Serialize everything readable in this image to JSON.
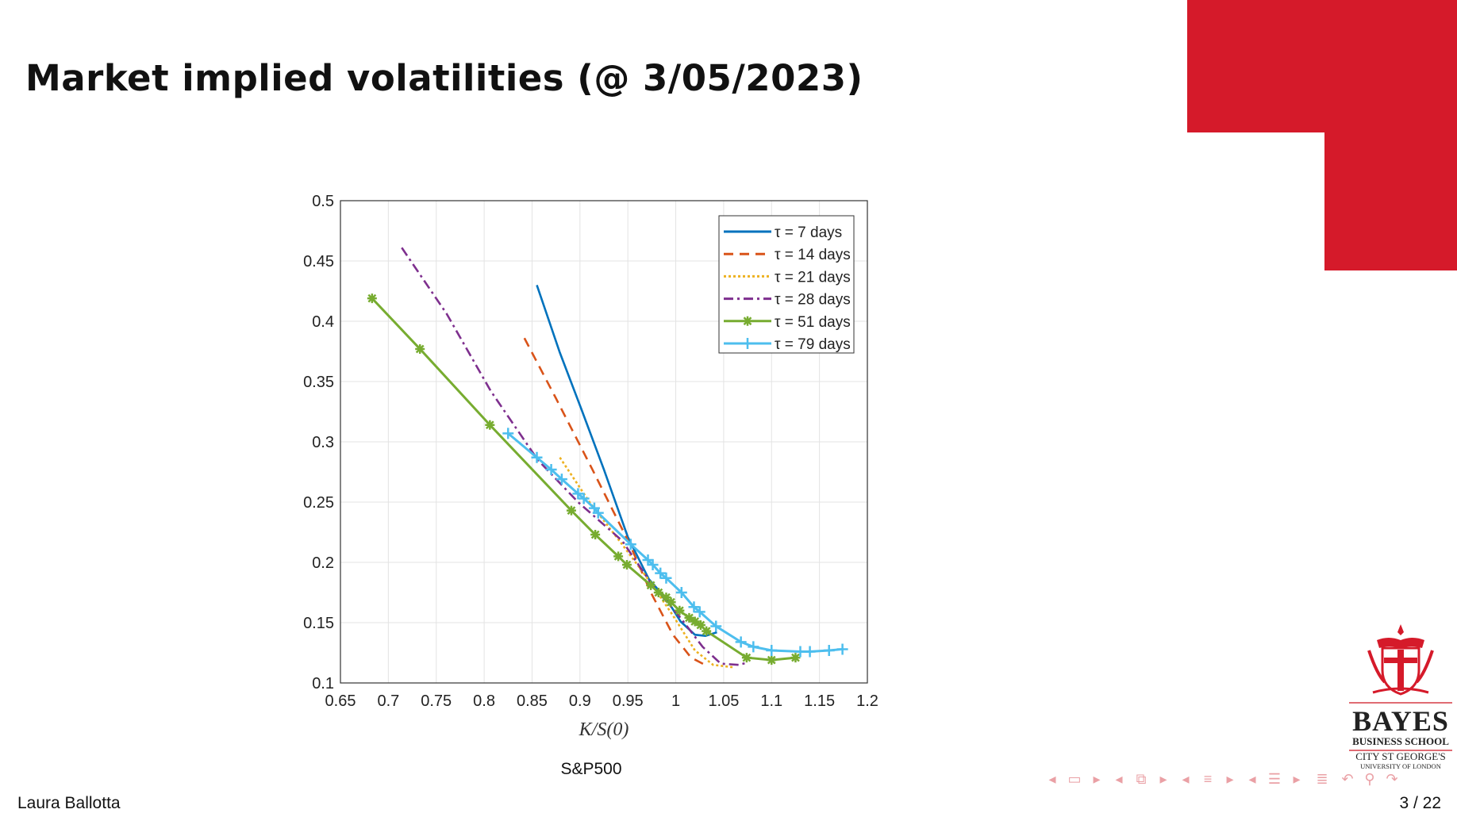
{
  "slide": {
    "title": "Market implied volatilities (@ 3/05/2023)",
    "caption": "S&P500",
    "author": "Laura Ballotta",
    "page": "3 / 22",
    "accent_color": "#d51a2a"
  },
  "logo": {
    "name": "BAYES",
    "subtitle": "BUSINESS SCHOOL",
    "affiliation": "CITY ST GEORGE'S",
    "university": "UNIVERSITY OF LONDON"
  },
  "nav": {
    "icons": [
      "prev-arrow",
      "frame-icon",
      "next-arrow",
      "prev-arrow",
      "subsection-icon",
      "next-arrow",
      "prev-arrow",
      "section-icon",
      "next-arrow",
      "prev-arrow",
      "toc-icon",
      "next-arrow",
      "outline-icon",
      "undo-icon",
      "search-icon",
      "redo-icon"
    ]
  },
  "chart_data": {
    "type": "line",
    "title": "",
    "xlabel": "K/S(0)",
    "ylabel": "",
    "xlim": [
      0.65,
      1.2
    ],
    "ylim": [
      0.1,
      0.5
    ],
    "xticks": [
      "0.65",
      "0.7",
      "0.75",
      "0.8",
      "0.85",
      "0.9",
      "0.95",
      "1",
      "1.05",
      "1.1",
      "1.15",
      "1.2"
    ],
    "yticks": [
      "0.1",
      "0.15",
      "0.2",
      "0.25",
      "0.3",
      "0.35",
      "0.4",
      "0.45",
      "0.5"
    ],
    "grid": true,
    "legend_position": "top-right",
    "series": [
      {
        "name": "τ = 7 days",
        "color": "#0072bd",
        "style": "solid",
        "marker": "none",
        "x": [
          0.855,
          0.879,
          0.902,
          0.925,
          0.95,
          0.972,
          0.99,
          1.005,
          1.02,
          1.031,
          1.043
        ],
        "y": [
          0.43,
          0.374,
          0.326,
          0.277,
          0.221,
          0.186,
          0.17,
          0.151,
          0.14,
          0.139,
          0.142
        ]
      },
      {
        "name": "τ = 14 days",
        "color": "#d95319",
        "style": "dashed",
        "marker": "none",
        "x": [
          0.842,
          0.875,
          0.913,
          0.952,
          0.974,
          0.997,
          1.016,
          1.033
        ],
        "y": [
          0.386,
          0.336,
          0.277,
          0.215,
          0.175,
          0.14,
          0.121,
          0.114
        ]
      },
      {
        "name": "τ = 21 days",
        "color": "#edb120",
        "style": "dotted",
        "marker": "none",
        "x": [
          0.879,
          0.91,
          0.944,
          0.974,
          0.997,
          1.02,
          1.039,
          1.06
        ],
        "y": [
          0.287,
          0.25,
          0.215,
          0.183,
          0.156,
          0.127,
          0.115,
          0.113
        ]
      },
      {
        "name": "τ = 28 days",
        "color": "#7e2f8e",
        "style": "dashdot",
        "marker": "none",
        "x": [
          0.714,
          0.761,
          0.807,
          0.856,
          0.898,
          0.944,
          0.974,
          1.005,
          1.028,
          1.047,
          1.066,
          1.075
        ],
        "y": [
          0.461,
          0.406,
          0.342,
          0.285,
          0.25,
          0.218,
          0.183,
          0.154,
          0.13,
          0.116,
          0.115,
          0.117
        ]
      },
      {
        "name": "τ = 51 days",
        "color": "#77ac30",
        "style": "solid",
        "marker": "star",
        "x": [
          0.683,
          0.733,
          0.806,
          0.891,
          0.916,
          0.94,
          0.949,
          0.974,
          0.982,
          0.99,
          0.995,
          1.004,
          1.014,
          1.02,
          1.026,
          1.032,
          1.074,
          1.1,
          1.125
        ],
        "y": [
          0.419,
          0.377,
          0.314,
          0.243,
          0.223,
          0.205,
          0.198,
          0.181,
          0.175,
          0.171,
          0.167,
          0.16,
          0.154,
          0.151,
          0.148,
          0.143,
          0.121,
          0.119,
          0.121
        ]
      },
      {
        "name": "τ = 79 days",
        "color": "#4dbeee",
        "style": "solid",
        "marker": "plus",
        "x": [
          0.825,
          0.855,
          0.87,
          0.881,
          0.898,
          0.904,
          0.915,
          0.919,
          0.953,
          0.971,
          0.976,
          0.984,
          0.99,
          1.006,
          1.019,
          1.025,
          1.042,
          1.068,
          1.081,
          1.1,
          1.13,
          1.14,
          1.16,
          1.174
        ],
        "y": [
          0.307,
          0.287,
          0.277,
          0.269,
          0.257,
          0.253,
          0.245,
          0.241,
          0.215,
          0.202,
          0.198,
          0.191,
          0.187,
          0.175,
          0.163,
          0.159,
          0.147,
          0.134,
          0.13,
          0.127,
          0.126,
          0.126,
          0.127,
          0.128
        ]
      }
    ]
  }
}
